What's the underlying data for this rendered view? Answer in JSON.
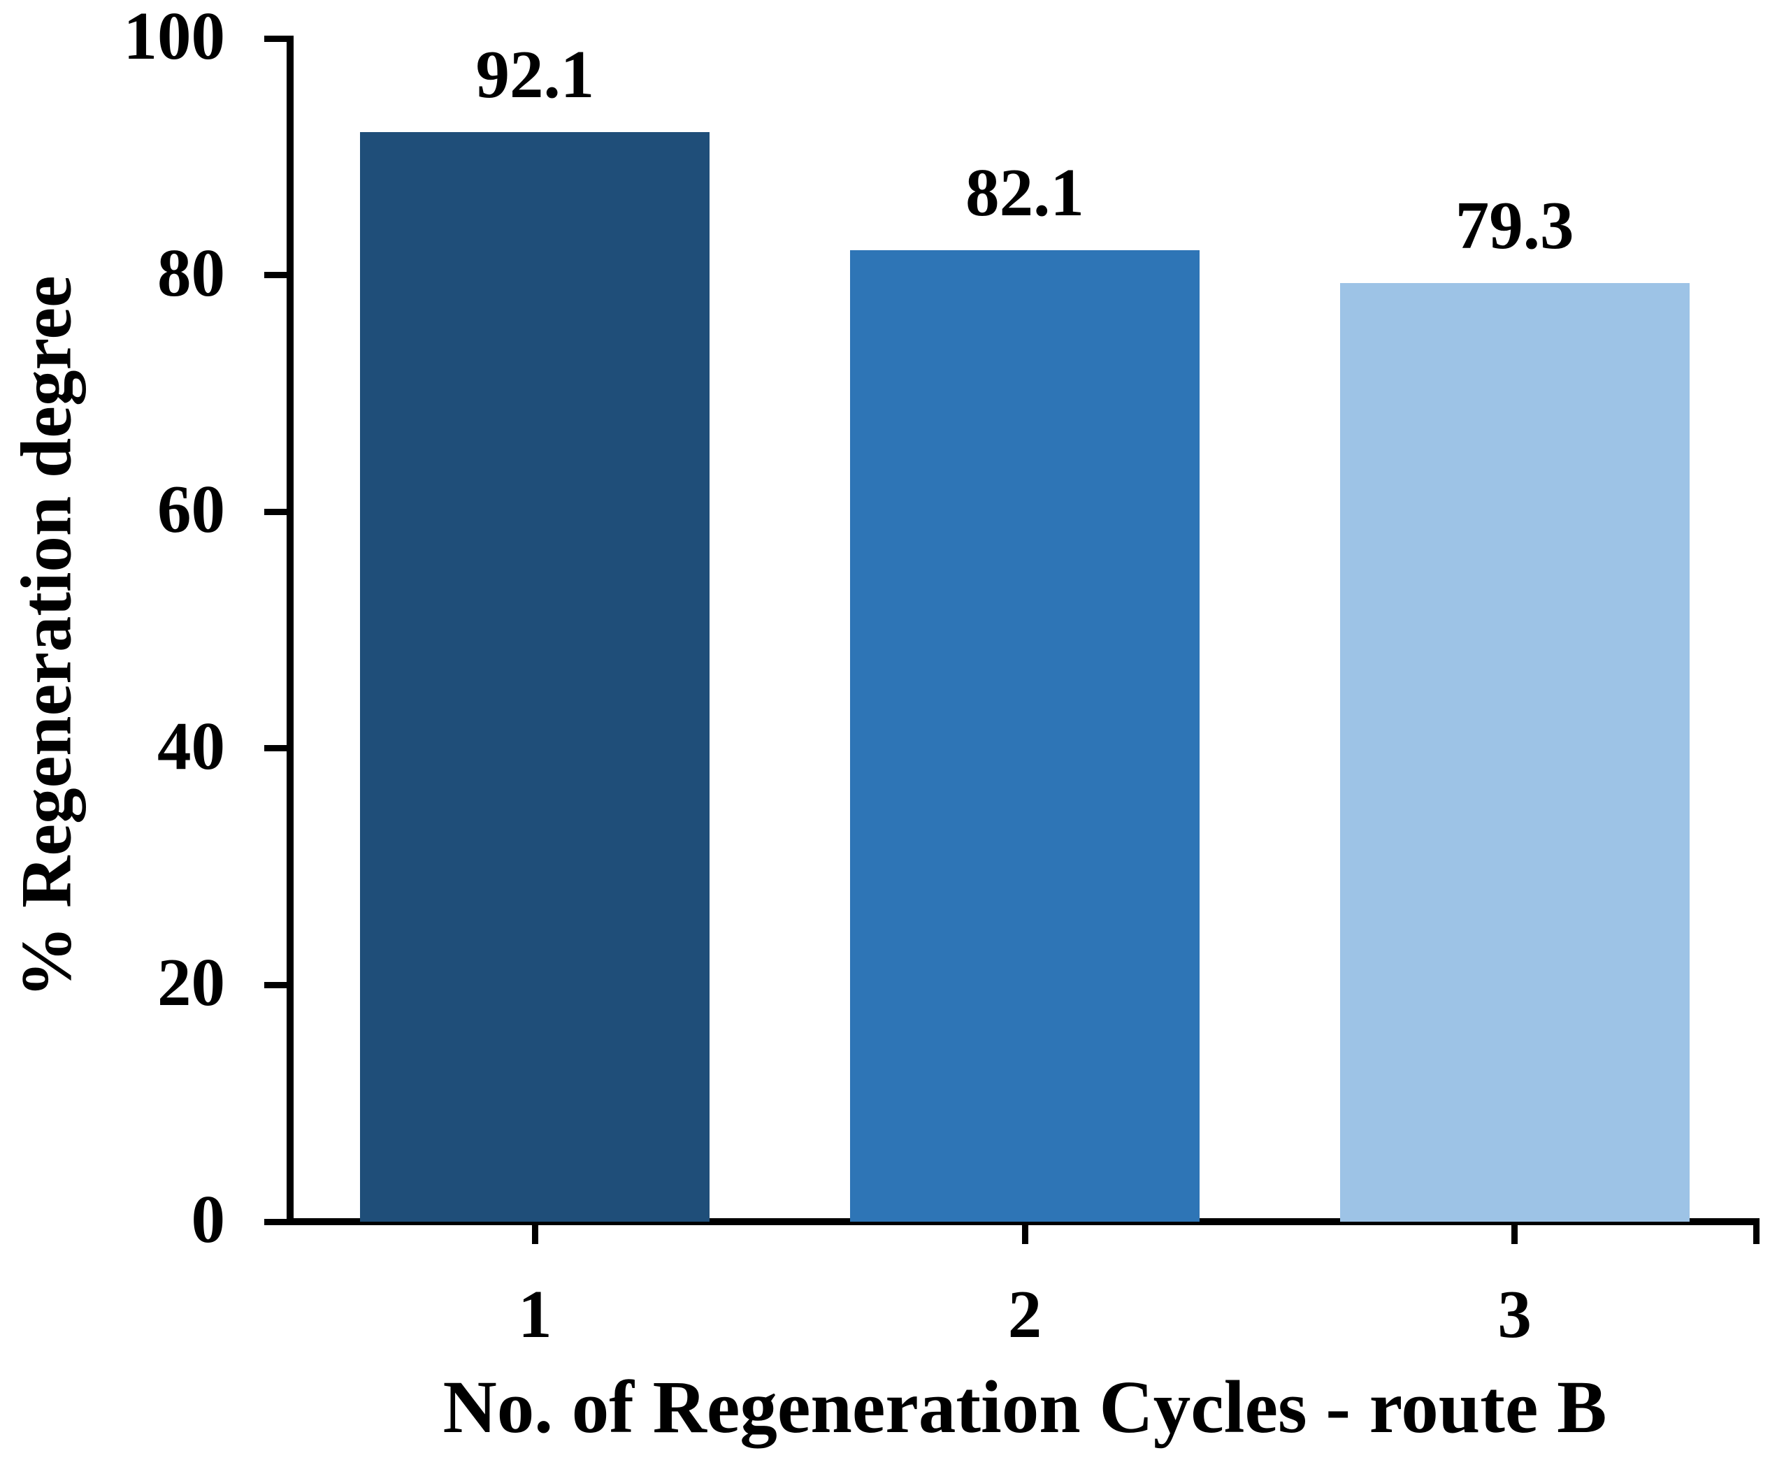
{
  "chart_data": {
    "type": "bar",
    "title": "",
    "categories": [
      "1",
      "2",
      "3"
    ],
    "values": [
      92.1,
      82.1,
      79.3
    ],
    "bar_value_labels": [
      "92.1",
      "82.1",
      "79.3"
    ],
    "bar_colors": [
      "#1F4E79",
      "#2E75B6",
      "#9DC3E6"
    ],
    "xlabel": "No. of Regeneration Cycles - route B",
    "ylabel": "% Regeneration degree",
    "ylim": [
      0,
      100
    ],
    "yticks": [
      0,
      20,
      40,
      60,
      80,
      100
    ],
    "ytick_labels": [
      "0",
      "20",
      "40",
      "60",
      "80",
      "100"
    ],
    "grid": "off",
    "legend": "none",
    "axis_color": "#000000",
    "background_color": "#FFFFFF",
    "text_color": "#000000"
  }
}
